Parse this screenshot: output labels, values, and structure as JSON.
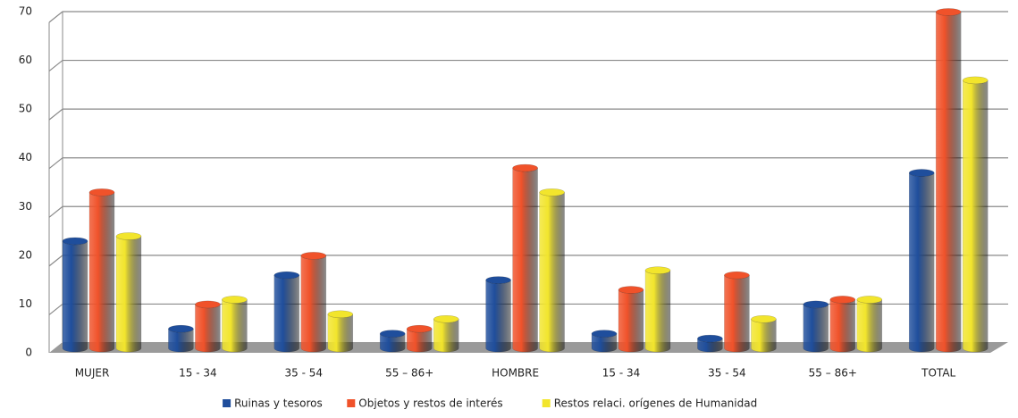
{
  "chart_data": {
    "type": "bar",
    "categories": [
      "MUJER",
      "15 - 34",
      "35 - 54",
      "55 – 86+",
      "HOMBRE",
      "15 - 34",
      "35 - 54",
      "55 – 86+",
      "TOTAL"
    ],
    "series": [
      {
        "name": "Ruinas y tesoros",
        "color": "#1f4e9c",
        "values": [
          22,
          4,
          15,
          3,
          14,
          3,
          2,
          9,
          36
        ]
      },
      {
        "name": "Objetos y restos de interés",
        "color": "#f0522a",
        "values": [
          32,
          9,
          19,
          4,
          37,
          12,
          15,
          10,
          69
        ]
      },
      {
        "name": "Restos relaci. orígenes de Humanidad",
        "color": "#f2e52c",
        "values": [
          23,
          10,
          7,
          6,
          32,
          16,
          6,
          10,
          55
        ]
      }
    ],
    "ylim": [
      0,
      70
    ],
    "yticks": [
      0,
      10,
      20,
      30,
      40,
      50,
      60,
      70
    ],
    "grid": true
  }
}
